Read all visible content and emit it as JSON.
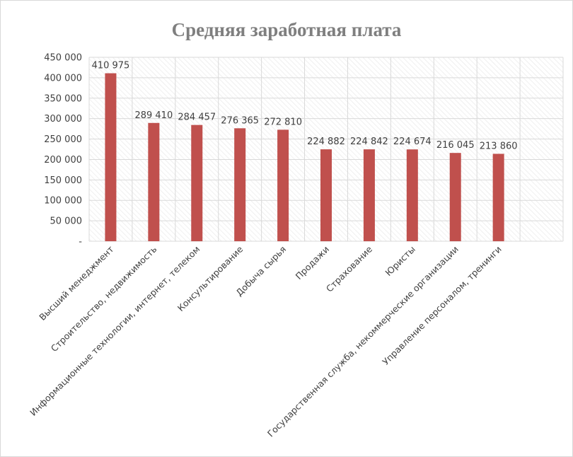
{
  "chart_data": {
    "type": "bar",
    "title": "Средняя заработная плата",
    "xlabel": "",
    "ylabel": "",
    "categories": [
      "Высший менеджмент",
      "Строительство, недвижимость",
      "Информационные технологии, интернет, телеком",
      "Консультирование",
      "Добыча сырья",
      "Продажи",
      "Страхование",
      "Юристы",
      "Государственная служба, некоммерческие организации",
      "Управление персоналом, тренинги"
    ],
    "values": [
      410975,
      289410,
      284457,
      276365,
      272810,
      224882,
      224842,
      224674,
      216045,
      213860
    ],
    "data_labels": [
      "410 975",
      "289 410",
      "284 457",
      "276 365",
      "272 810",
      "224 882",
      "224 842",
      "224 674",
      "216 045",
      "213 860"
    ],
    "ylim": [
      0,
      450000
    ],
    "y_ticks": [
      0,
      50000,
      100000,
      150000,
      200000,
      250000,
      300000,
      350000,
      400000,
      450000
    ],
    "y_tick_labels": [
      "-",
      "50 000",
      "100 000",
      "150 000",
      "200 000",
      "250 000",
      "300 000",
      "350 000",
      "400 000",
      "450 000"
    ],
    "grid": true,
    "legend": "none",
    "bar_color": "#c0504d"
  }
}
